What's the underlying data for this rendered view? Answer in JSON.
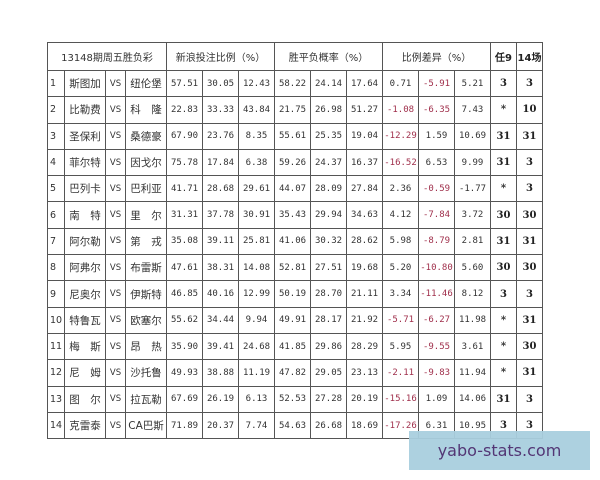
{
  "header": {
    "title": "13148期周五胜负彩",
    "sina_ratio": "新浪投注比例（%）",
    "probability": "胜平负概率（%）",
    "diff": "比例差异（%）",
    "ren9": "任9",
    "games14": "14场"
  },
  "vs_label": "VS",
  "negative_color": "#a0304c",
  "rows": [
    {
      "n": "1",
      "home": "斯图加",
      "away": "纽伦堡",
      "sina": [
        "57.51",
        "30.05",
        "12.43"
      ],
      "prob": [
        "58.22",
        "24.14",
        "17.64"
      ],
      "diff": [
        "0.71",
        "-5.91",
        "5.21"
      ],
      "ren9": "3",
      "g14": "3"
    },
    {
      "n": "2",
      "home": "比勒费",
      "away": "科　隆",
      "sina": [
        "22.83",
        "33.33",
        "43.84"
      ],
      "prob": [
        "21.75",
        "26.98",
        "51.27"
      ],
      "diff": [
        "-1.08",
        "-6.35",
        "7.43"
      ],
      "ren9": "*",
      "g14": "10"
    },
    {
      "n": "3",
      "home": "圣保利",
      "away": "桑德豪",
      "sina": [
        "67.90",
        "23.76",
        "8.35"
      ],
      "prob": [
        "55.61",
        "25.35",
        "19.04"
      ],
      "diff": [
        "-12.29",
        "1.59",
        "10.69"
      ],
      "ren9": "31",
      "g14": "31"
    },
    {
      "n": "4",
      "home": "菲尔特",
      "away": "因戈尔",
      "sina": [
        "75.78",
        "17.84",
        "6.38"
      ],
      "prob": [
        "59.26",
        "24.37",
        "16.37"
      ],
      "diff": [
        "-16.52",
        "6.53",
        "9.99"
      ],
      "ren9": "31",
      "g14": "3"
    },
    {
      "n": "5",
      "home": "巴列卡",
      "away": "巴利亚",
      "sina": [
        "41.71",
        "28.68",
        "29.61"
      ],
      "prob": [
        "44.07",
        "28.09",
        "27.84"
      ],
      "diff": [
        "2.36",
        "-0.59",
        "-1.77"
      ],
      "ren9": "*",
      "g14": "3"
    },
    {
      "n": "6",
      "home": "南　特",
      "away": "里　尔",
      "sina": [
        "31.31",
        "37.78",
        "30.91"
      ],
      "prob": [
        "35.43",
        "29.94",
        "34.63"
      ],
      "diff": [
        "4.12",
        "-7.84",
        "3.72"
      ],
      "ren9": "30",
      "g14": "30"
    },
    {
      "n": "7",
      "home": "阿尔勒",
      "away": "第　戎",
      "sina": [
        "35.08",
        "39.11",
        "25.81"
      ],
      "prob": [
        "41.06",
        "30.32",
        "28.62"
      ],
      "diff": [
        "5.98",
        "-8.79",
        "2.81"
      ],
      "ren9": "31",
      "g14": "31"
    },
    {
      "n": "8",
      "home": "阿弗尔",
      "away": "布雷斯",
      "sina": [
        "47.61",
        "38.31",
        "14.08"
      ],
      "prob": [
        "52.81",
        "27.51",
        "19.68"
      ],
      "diff": [
        "5.20",
        "-10.80",
        "5.60"
      ],
      "ren9": "30",
      "g14": "30"
    },
    {
      "n": "9",
      "home": "尼奥尔",
      "away": "伊斯特",
      "sina": [
        "46.85",
        "40.16",
        "12.99"
      ],
      "prob": [
        "50.19",
        "28.70",
        "21.11"
      ],
      "diff": [
        "3.34",
        "-11.46",
        "8.12"
      ],
      "ren9": "3",
      "g14": "3"
    },
    {
      "n": "10",
      "home": "特鲁瓦",
      "away": "欧塞尔",
      "sina": [
        "55.62",
        "34.44",
        "9.94"
      ],
      "prob": [
        "49.91",
        "28.17",
        "21.92"
      ],
      "diff": [
        "-5.71",
        "-6.27",
        "11.98"
      ],
      "ren9": "*",
      "g14": "31"
    },
    {
      "n": "11",
      "home": "梅　斯",
      "away": "昂　热",
      "sina": [
        "35.90",
        "39.41",
        "24.68"
      ],
      "prob": [
        "41.85",
        "29.86",
        "28.29"
      ],
      "diff": [
        "5.95",
        "-9.55",
        "3.61"
      ],
      "ren9": "*",
      "g14": "30"
    },
    {
      "n": "12",
      "home": "尼　姆",
      "away": "沙托鲁",
      "sina": [
        "49.93",
        "38.88",
        "11.19"
      ],
      "prob": [
        "47.82",
        "29.05",
        "23.13"
      ],
      "diff": [
        "-2.11",
        "-9.83",
        "11.94"
      ],
      "ren9": "*",
      "g14": "31"
    },
    {
      "n": "13",
      "home": "图　尔",
      "away": "拉瓦勒",
      "sina": [
        "67.69",
        "26.19",
        "6.13"
      ],
      "prob": [
        "52.53",
        "27.28",
        "20.19"
      ],
      "diff": [
        "-15.16",
        "1.09",
        "14.06"
      ],
      "ren9": "31",
      "g14": "3"
    },
    {
      "n": "14",
      "home": "克雷泰",
      "away": "CA巴斯",
      "sina": [
        "71.89",
        "20.37",
        "7.74"
      ],
      "prob": [
        "54.63",
        "26.68",
        "18.69"
      ],
      "diff": [
        "-17.26",
        "6.31",
        "10.95"
      ],
      "ren9": "3",
      "g14": "3"
    }
  ],
  "watermark": "yabo-stats.com"
}
